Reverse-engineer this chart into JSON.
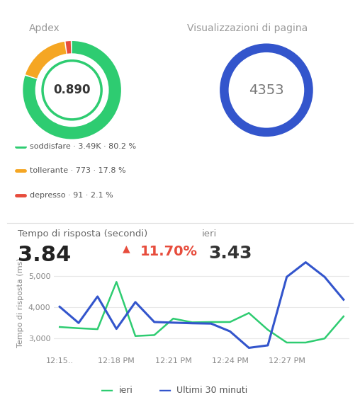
{
  "apdex_value": "0.890",
  "apdex_title": "Apdex",
  "apdex_segments": [
    {
      "label": "soddisfare",
      "value": 3490,
      "pct": "80.2",
      "color": "#2ecc71",
      "display": "3.49K"
    },
    {
      "label": "tollerante",
      "value": 773,
      "pct": "17.8",
      "color": "#f5a623",
      "display": "773"
    },
    {
      "label": "depresso",
      "value": 91,
      "pct": "2.1",
      "color": "#e74c3c",
      "display": "91"
    }
  ],
  "pageviews_title": "Visualizzazioni di pagina",
  "pageviews_value": "4353",
  "pageviews_ring_color": "#3355cc",
  "chart_title": "Tempo di risposta (secondi)",
  "chart_subtitle": "ieri",
  "chart_current_value": "3.84",
  "chart_ieri_value": "3.43",
  "chart_pct_change": "11.70%",
  "chart_ylabel": "Tempo di risposta (ms)",
  "x_labels": [
    "12:15..",
    "12:18 PM",
    "12:21 PM",
    "12:24 PM",
    "12:27 PM",
    ""
  ],
  "ieri_x": [
    0,
    1,
    2,
    3,
    4,
    5,
    6,
    7,
    8,
    9,
    10,
    11,
    12,
    13,
    14,
    15
  ],
  "ieri_y": [
    3370,
    3330,
    3300,
    4820,
    3080,
    3110,
    3640,
    3520,
    3530,
    3530,
    3820,
    3280,
    2870,
    2870,
    3000,
    3710
  ],
  "ultimi_x": [
    0,
    1,
    2,
    3,
    4,
    5,
    6,
    7,
    8,
    9,
    10,
    11,
    12,
    13,
    14,
    15
  ],
  "ultimi_y": [
    4020,
    3500,
    4350,
    3310,
    4170,
    3530,
    3510,
    3490,
    3480,
    3230,
    2700,
    2780,
    4980,
    5450,
    4980,
    4250
  ],
  "ieri_color": "#2ecc71",
  "ultimi_color": "#3355cc",
  "yticks": [
    3000,
    4000,
    5000
  ],
  "ylim": [
    2500,
    5800
  ],
  "background_color": "#ffffff",
  "legend_ieri": "ieri",
  "legend_ultimi": "Ultimi 30 minuti"
}
